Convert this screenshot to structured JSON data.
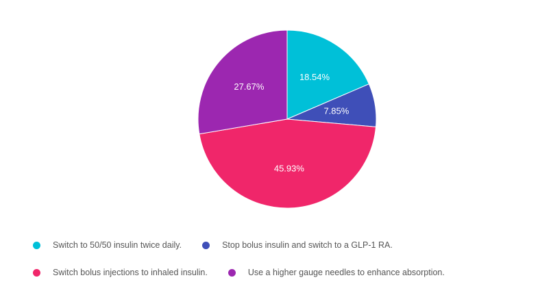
{
  "chart_data": {
    "type": "pie",
    "title": "",
    "slices": [
      {
        "label": "Switch to 50/50 insulin twice daily.",
        "value": 18.54,
        "display": "18.54%",
        "color": "#00c0d8"
      },
      {
        "label": "Stop bolus insulin and switch to a GLP-1 RA.",
        "value": 7.85,
        "display": "7.85%",
        "color": "#3f4fb8"
      },
      {
        "label": "Switch bolus injections to inhaled insulin.",
        "value": 45.93,
        "display": "45.93%",
        "color": "#f0266a"
      },
      {
        "label": "Use a higher gauge needles to enhance absorption.",
        "value": 27.67,
        "display": "27.67%",
        "color": "#9c27b0"
      }
    ],
    "legend_position": "bottom",
    "start_angle_deg": 0,
    "direction": "clockwise"
  }
}
